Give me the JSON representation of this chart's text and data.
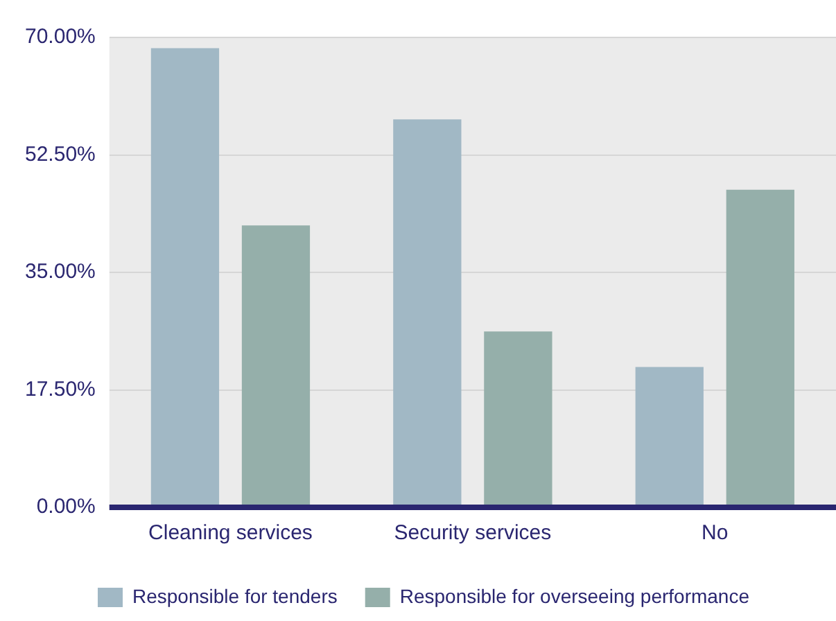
{
  "chart_data": {
    "type": "bar",
    "categories": [
      "Cleaning services",
      "Security services",
      "No"
    ],
    "series": [
      {
        "name": "Responsible for tenders",
        "color": "#a1b8c5",
        "values": [
          68.4,
          57.8,
          20.9
        ]
      },
      {
        "name": "Responsible for overseeing performance",
        "color": "#95afaa",
        "values": [
          42.0,
          26.2,
          47.3
        ]
      }
    ],
    "ylim": [
      0,
      70
    ],
    "yticks": [
      {
        "value": 0,
        "label": "0.00%"
      },
      {
        "value": 17.5,
        "label": "17.50%"
      },
      {
        "value": 35,
        "label": "35.00%"
      },
      {
        "value": 52.5,
        "label": "52.50%"
      },
      {
        "value": 70,
        "label": "70.00%"
      }
    ],
    "grid": "y",
    "legend": "bottom"
  }
}
